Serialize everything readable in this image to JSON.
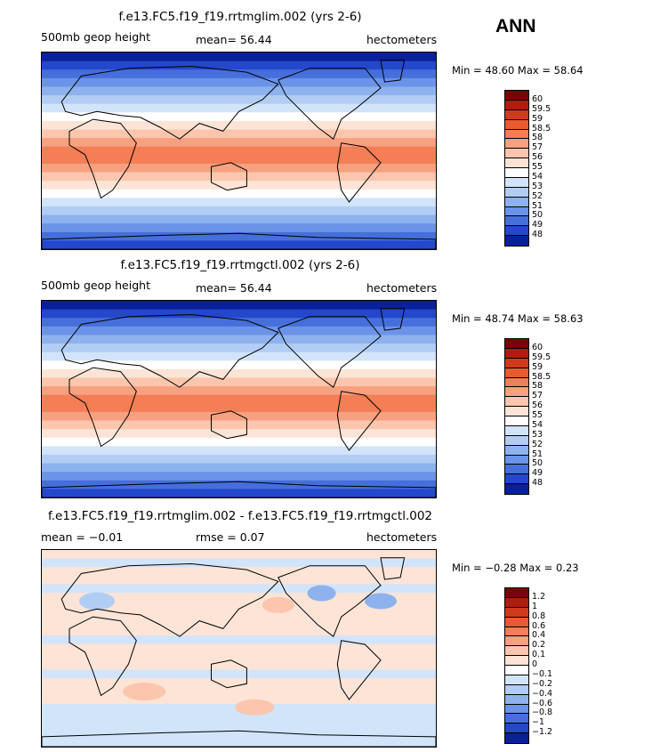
{
  "season": "ANN",
  "panels": [
    {
      "id": "p1",
      "title": "f.e13.FC5.f19_f19.rrtmglim.002 (yrs 2-6)",
      "left_label": "500mb geop height",
      "mid_label": "mean=   56.44",
      "units": "hectometers",
      "minmax": "Min =   48.60  Max =   58.64",
      "cb_labels": [
        "60",
        "59.5",
        "59",
        "58.5",
        "58",
        "57",
        "56",
        "55",
        "54",
        "53",
        "52",
        "51",
        "50",
        "49",
        "48"
      ],
      "cb_colors": [
        "#7a0403",
        "#b01c10",
        "#d03a1c",
        "#e85a32",
        "#f47e55",
        "#f7a181",
        "#fbc6ad",
        "#fde4d6",
        "#ffffff",
        "#d2e4fa",
        "#b2cdf4",
        "#8eb2ee",
        "#6b93e8",
        "#466fdb",
        "#2447cc",
        "#0a1f9a"
      ],
      "bands": [
        "#0a1f9a",
        "#2447cc",
        "#466fdb",
        "#6b93e8",
        "#8eb2ee",
        "#b2cdf4",
        "#d2e4fa",
        "#ffffff",
        "#fde4d6",
        "#fbc6ad",
        "#f7a181",
        "#f47e55",
        "#f47e55",
        "#f7a181",
        "#fbc6ad",
        "#fde4d6",
        "#ffffff",
        "#d2e4fa",
        "#b2cdf4",
        "#8eb2ee",
        "#6b93e8",
        "#466fdb",
        "#2447cc"
      ],
      "chart_data": {
        "type": "heatmap",
        "variable": "500mb geop height",
        "units": "hectometers",
        "mean": 56.44,
        "min": 48.6,
        "max": 58.64,
        "levels": [
          48,
          49,
          50,
          51,
          52,
          53,
          54,
          55,
          56,
          57,
          58,
          58.5,
          59,
          59.5,
          60
        ]
      }
    },
    {
      "id": "p2",
      "title": "f.e13.FC5.f19_f19.rrtmgctl.002 (yrs 2-6)",
      "left_label": "500mb geop height",
      "mid_label": "mean=   56.44",
      "units": "hectometers",
      "minmax": "Min =   48.74  Max =   58.63",
      "cb_labels": [
        "60",
        "59.5",
        "59",
        "58.5",
        "58",
        "57",
        "56",
        "55",
        "54",
        "53",
        "52",
        "51",
        "50",
        "49",
        "48"
      ],
      "cb_colors": [
        "#7a0403",
        "#b01c10",
        "#d03a1c",
        "#e85a32",
        "#f47e55",
        "#f7a181",
        "#fbc6ad",
        "#fde4d6",
        "#ffffff",
        "#d2e4fa",
        "#b2cdf4",
        "#8eb2ee",
        "#6b93e8",
        "#466fdb",
        "#2447cc",
        "#0a1f9a"
      ],
      "bands": [
        "#0a1f9a",
        "#2447cc",
        "#466fdb",
        "#6b93e8",
        "#8eb2ee",
        "#b2cdf4",
        "#d2e4fa",
        "#ffffff",
        "#fde4d6",
        "#fbc6ad",
        "#f7a181",
        "#f47e55",
        "#f47e55",
        "#f7a181",
        "#fbc6ad",
        "#fde4d6",
        "#ffffff",
        "#d2e4fa",
        "#b2cdf4",
        "#8eb2ee",
        "#6b93e8",
        "#466fdb",
        "#2447cc"
      ],
      "chart_data": {
        "type": "heatmap",
        "variable": "500mb geop height",
        "units": "hectometers",
        "mean": 56.44,
        "min": 48.74,
        "max": 58.63,
        "levels": [
          48,
          49,
          50,
          51,
          52,
          53,
          54,
          55,
          56,
          57,
          58,
          58.5,
          59,
          59.5,
          60
        ]
      }
    },
    {
      "id": "p3",
      "title": "f.e13.FC5.f19_f19.rrtmglim.002 - f.e13.FC5.f19_f19.rrtmgctl.002",
      "left_label": "mean =   −0.01",
      "mid_label": "rmse =    0.07",
      "units": "hectometers",
      "minmax": "Min =  −0.28  Max =    0.23",
      "cb_labels": [
        "1.2",
        "1",
        "0.8",
        "0.6",
        "0.4",
        "0.2",
        "0.1",
        "0",
        "−0.1",
        "−0.2",
        "−0.4",
        "−0.6",
        "−0.8",
        "−1",
        "−1.2"
      ],
      "cb_colors": [
        "#7a0403",
        "#b01c10",
        "#d03a1c",
        "#e85a32",
        "#f47e55",
        "#f7a181",
        "#fbc6ad",
        "#fde4d6",
        "#ffffff",
        "#d2e4fa",
        "#b2cdf4",
        "#8eb2ee",
        "#6b93e8",
        "#466fdb",
        "#2447cc",
        "#0a1f9a"
      ],
      "bands": [
        "#fde4d6",
        "#d2e4fa",
        "#fde4d6",
        "#fde4d6",
        "#d2e4fa",
        "#fde4d6",
        "#fde4d6",
        "#fde4d6",
        "#fde4d6",
        "#fde4d6",
        "#d2e4fa",
        "#fde4d6",
        "#fde4d6",
        "#fde4d6",
        "#d2e4fa",
        "#fde4d6",
        "#fde4d6",
        "#fde4d6",
        "#d2e4fa",
        "#d2e4fa",
        "#d2e4fa",
        "#d2e4fa",
        "#d2e4fa"
      ],
      "chart_data": {
        "type": "heatmap",
        "variable": "difference",
        "units": "hectometers",
        "mean": -0.01,
        "rmse": 0.07,
        "min": -0.28,
        "max": 0.23,
        "levels": [
          -1.2,
          -1,
          -0.8,
          -0.6,
          -0.4,
          -0.2,
          -0.1,
          0,
          0.1,
          0.2,
          0.4,
          0.6,
          0.8,
          1,
          1.2
        ]
      }
    }
  ]
}
